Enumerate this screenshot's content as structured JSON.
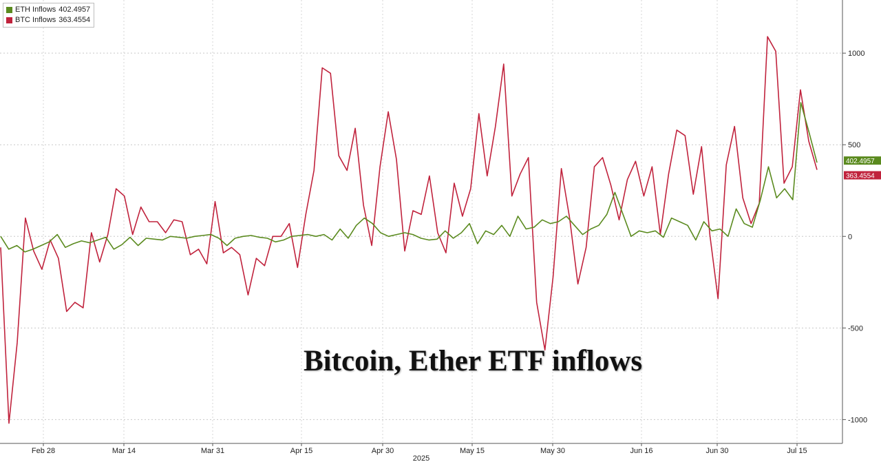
{
  "chart_data": {
    "type": "line",
    "title": "Bitcoin, Ether ETF inflows",
    "year_label": "2025",
    "x_ticks": [
      "Feb 28",
      "Mar 14",
      "Mar 31",
      "Apr 15",
      "Apr 30",
      "May 15",
      "May 30",
      "Jun 16",
      "Jun 30",
      "Jul 15"
    ],
    "y_ticks": [
      -1000,
      -500,
      0,
      500,
      1000
    ],
    "ylim": [
      -1130,
      1290
    ],
    "grid": "horizontal-dashed",
    "legend_position": "top-left",
    "series": [
      {
        "name": "ETH Inflows",
        "last_value": "402.4957",
        "color": "#5a8a1e",
        "values": [
          0,
          -70,
          -50,
          -85,
          -70,
          -50,
          -30,
          10,
          -60,
          -40,
          -25,
          -35,
          -20,
          -5,
          -70,
          -45,
          -5,
          -50,
          -10,
          -15,
          -20,
          0,
          -5,
          -10,
          0,
          5,
          10,
          -10,
          -50,
          -10,
          0,
          5,
          -5,
          -10,
          -30,
          -20,
          0,
          5,
          10,
          0,
          10,
          -20,
          40,
          -10,
          60,
          100,
          70,
          20,
          0,
          10,
          20,
          10,
          -10,
          -20,
          -15,
          30,
          -10,
          20,
          70,
          -40,
          30,
          10,
          60,
          0,
          110,
          40,
          50,
          90,
          70,
          80,
          110,
          60,
          10,
          40,
          60,
          120,
          240,
          120,
          0,
          30,
          20,
          30,
          -5,
          100,
          80,
          60,
          -20,
          80,
          30,
          40,
          0,
          150,
          70,
          50,
          200,
          380,
          210,
          260,
          200,
          730,
          570,
          402.4957
        ]
      },
      {
        "name": "BTC Inflows",
        "last_value": "363.4554",
        "color": "#c0223c",
        "values": [
          -60,
          -1020,
          -580,
          100,
          -80,
          -180,
          -20,
          -120,
          -410,
          -360,
          -390,
          20,
          -140,
          10,
          260,
          220,
          10,
          160,
          80,
          80,
          20,
          90,
          80,
          -100,
          -70,
          -150,
          190,
          -90,
          -60,
          -100,
          -320,
          -120,
          -160,
          0,
          0,
          70,
          -170,
          120,
          360,
          920,
          890,
          440,
          360,
          590,
          170,
          -50,
          380,
          680,
          420,
          -80,
          140,
          120,
          330,
          20,
          -90,
          290,
          110,
          260,
          670,
          330,
          600,
          940,
          220,
          340,
          430,
          -360,
          -620,
          -220,
          370,
          100,
          -260,
          -60,
          380,
          430,
          280,
          90,
          310,
          410,
          220,
          380,
          10,
          340,
          580,
          550,
          230,
          490,
          10,
          -340,
          390,
          600,
          210,
          70,
          180,
          1090,
          1010,
          290,
          380,
          800,
          520,
          363.4554
        ]
      }
    ]
  }
}
